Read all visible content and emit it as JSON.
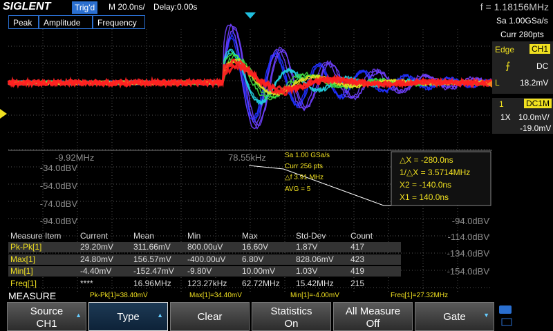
{
  "header": {
    "brand": "SIGLENT",
    "trigger_status": "Trig'd",
    "timebase": "M 20.0ns/",
    "delay": "Delay:0.00s",
    "frequency": "f = 1.18156MHz"
  },
  "right_panel": {
    "sample_rate": "Sa 1.00GSa/s",
    "points": "Curr 280pts",
    "trigger": {
      "type": "Edge",
      "source": "CH1",
      "coupling": "DC",
      "level_label": "L",
      "level": "18.2mV"
    },
    "channel": {
      "number": "1",
      "coupling": "DC1M",
      "probe": "1X",
      "scale": "10.0mV/",
      "offset": "-19.0mV"
    }
  },
  "tabs": [
    "Peak",
    "Amplitude",
    "Frequency"
  ],
  "fft": {
    "freq_labels": [
      "-9.92MHz",
      "78.55kHz"
    ],
    "left_scale": [
      "-34.0dBV",
      "-54.0dBV",
      "-74.0dBV",
      "-94.0dBV"
    ],
    "right_scale": [
      "-94.0dBV",
      "-114.0dBV",
      "-134.0dBV",
      "-154.0dBV"
    ],
    "info": [
      "Sa 1.00 GSa/s",
      "Curr 256 pts",
      "△f 3.91 MHz",
      "AVG = 5"
    ]
  },
  "cursors": [
    "△X = -280.0ns",
    "1/△X = 3.5714MHz",
    "X2 = -140.0ns",
    "X1 = 140.0ns"
  ],
  "measure_table": {
    "columns": [
      "Measure Item",
      "Current",
      "Mean",
      "Min",
      "Max",
      "Std-Dev",
      "Count"
    ],
    "rows": [
      [
        "Pk-Pk[1]",
        "29.20mV",
        "311.66mV",
        "800.00uV",
        "16.60V",
        "1.87V",
        "417"
      ],
      [
        "Max[1]",
        "24.80mV",
        "156.57mV",
        "-400.00uV",
        "6.80V",
        "828.06mV",
        "423"
      ],
      [
        "Min[1]",
        "-4.40mV",
        "-152.47mV",
        "-9.80V",
        "10.00mV",
        "1.03V",
        "419"
      ],
      [
        "Freq[1]",
        "****",
        "16.96MHz",
        "123.27kHz",
        "62.72MHz",
        "15.42MHz",
        "215"
      ]
    ]
  },
  "status": {
    "title": "MEASURE",
    "readings": [
      "Pk-Pk[1]=38.40mV",
      "Max[1]=34.40mV",
      "Min[1]=-4.00mV",
      "Freq[1]=27.32MHz"
    ]
  },
  "softkeys": [
    {
      "label": "Source",
      "value": "CH1"
    },
    {
      "label": "Type"
    },
    {
      "label": "Clear"
    },
    {
      "label": "Statistics",
      "value": "On"
    },
    {
      "label": "All Measure",
      "value": "Off"
    },
    {
      "label": "Gate"
    }
  ]
}
